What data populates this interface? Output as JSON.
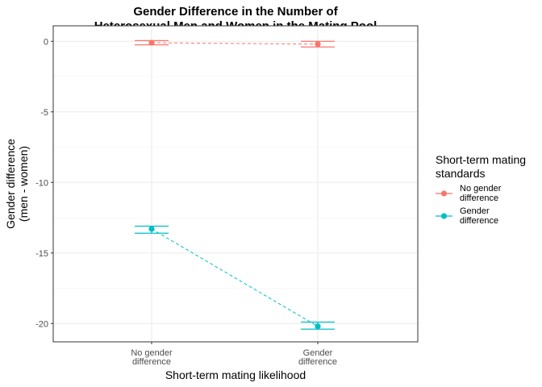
{
  "chart_data": {
    "type": "line",
    "title": [
      "Gender Difference in the Number of",
      "Heterosexual Men and Women in the Mating Pool"
    ],
    "xlabel": "Short-term mating likelihood",
    "ylabel": [
      "Gender difference",
      "(men - women)"
    ],
    "categories": [
      [
        "No gender",
        "difference"
      ],
      [
        "Gender",
        "difference"
      ]
    ],
    "ylim": [
      -21.3,
      1.1
    ],
    "yticks": [
      0,
      -5,
      -10,
      -15,
      -20
    ],
    "grid": true,
    "legend": {
      "title": [
        "Short-term mating",
        "standards"
      ],
      "placement": "right"
    },
    "series": [
      {
        "name": [
          "No gender",
          "difference"
        ],
        "color": "#F8766D",
        "values": [
          -0.1,
          -0.2
        ],
        "error_low": [
          -0.25,
          -0.4
        ],
        "error_high": [
          0.05,
          0.0
        ]
      },
      {
        "name": [
          "Gender",
          "difference"
        ],
        "color": "#00BFC4",
        "values": [
          -13.3,
          -20.2
        ],
        "error_low": [
          -13.6,
          -20.4
        ],
        "error_high": [
          -13.1,
          -19.9
        ]
      }
    ]
  }
}
